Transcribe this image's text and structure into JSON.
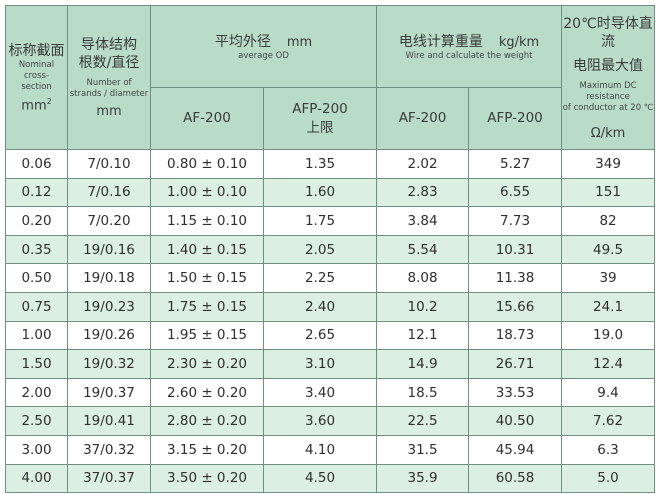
{
  "header": {
    "col1": {
      "zh": "标称截面",
      "en1": "Nominal cross-",
      "en2": "section",
      "unit": "mm",
      "unit_sup": "2"
    },
    "col2": {
      "zh1": "导体结构",
      "zh2": "根数/直径",
      "en1": "Number of",
      "en2": "strands / diameter",
      "unit": "mm"
    },
    "od": {
      "zh": "平均外径",
      "unit": "mm",
      "en": "average OD",
      "sub1": "AF-200",
      "sub2a": "AFP-200",
      "sub2b": "上限"
    },
    "wt": {
      "zh": "电线计算重量",
      "unit": "kg/km",
      "en": "Wire and calculate the weight",
      "sub1": "AF-200",
      "sub2": "AFP-200"
    },
    "res": {
      "zh1": "20℃时导体直流",
      "zh2": "电阻最大值",
      "en1": "Maximum DC resistance",
      "en2": "of conductor at 20 ℃",
      "unit": "Ω/km"
    }
  },
  "rows": [
    [
      "0.06",
      "7/0.10",
      "0.80 ± 0.10",
      "1.35",
      "2.02",
      "5.27",
      "349"
    ],
    [
      "0.12",
      "7/0.16",
      "1.00 ± 0.10",
      "1.60",
      "2.83",
      "6.55",
      "151"
    ],
    [
      "0.20",
      "7/0.20",
      "1.15 ± 0.10",
      "1.75",
      "3.84",
      "7.73",
      "82"
    ],
    [
      "0.35",
      "19/0.16",
      "1.40 ± 0.15",
      "2.05",
      "5.54",
      "10.31",
      "49.5"
    ],
    [
      "0.50",
      "19/0.18",
      "1.50 ± 0.15",
      "2.25",
      "8.08",
      "11.38",
      "39"
    ],
    [
      "0.75",
      "19/0.23",
      "1.75 ± 0.15",
      "2.40",
      "10.2",
      "15.66",
      "24.1"
    ],
    [
      "1.00",
      "19/0.26",
      "1.95 ± 0.15",
      "2.65",
      "12.1",
      "18.73",
      "19.0"
    ],
    [
      "1.50",
      "19/0.32",
      "2.30 ± 0.20",
      "3.10",
      "14.9",
      "26.71",
      "12.4"
    ],
    [
      "2.00",
      "19/0.37",
      "2.60 ± 0.20",
      "3.40",
      "18.5",
      "33.53",
      "9.4"
    ],
    [
      "2.50",
      "19/0.41",
      "2.80 ± 0.20",
      "3.60",
      "22.5",
      "40.50",
      "7.62"
    ],
    [
      "3.00",
      "37/0.32",
      "3.15 ± 0.20",
      "4.10",
      "31.5",
      "45.94",
      "6.3"
    ],
    [
      "4.00",
      "37/0.37",
      "3.50 ± 0.20",
      "4.50",
      "35.9",
      "60.58",
      "5.0"
    ]
  ],
  "colors": {
    "header_bg": "#b9dcc9",
    "alt_row_bg": "#dcefe3",
    "border": "#6f8f80"
  }
}
